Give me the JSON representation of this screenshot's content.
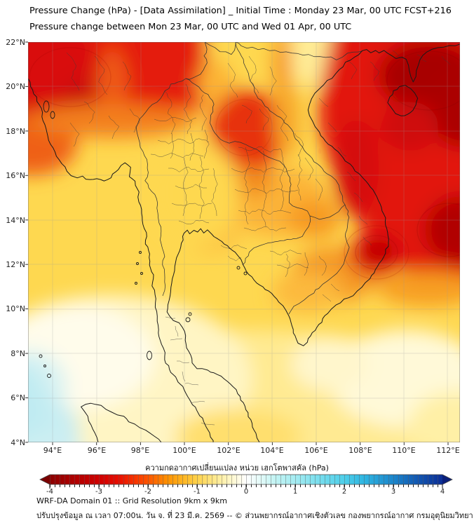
{
  "header": {
    "title_line1": "Pressure Change (hPa) - [Data Assimilation] _ Initial Time : Monday 23 Mar, 00 UTC FCST+216",
    "title_line2": "Pressure change between Mon 23 Mar, 00 UTC and Wed 01 Apr, 00 UTC"
  },
  "map": {
    "lat_ticks": [
      "22°N",
      "20°N",
      "18°N",
      "16°N",
      "14°N",
      "12°N",
      "10°N",
      "8°N",
      "6°N",
      "4°N"
    ],
    "lon_ticks": [
      "94°E",
      "96°E",
      "98°E",
      "100°E",
      "102°E",
      "104°E",
      "106°E",
      "108°E",
      "110°E",
      "112°E"
    ]
  },
  "colorbar": {
    "title": "ความกดอากาศเปลี่ยนแปลง หน่วย เฮกโตพาสคัล (hPa)",
    "ticks": [
      "-4",
      "-3",
      "-2",
      "-1",
      "0",
      "1",
      "2",
      "3",
      "4"
    ],
    "negative_color": "#8b0000",
    "zero_color": "#ffffff",
    "positive_color": "#0b2e96"
  },
  "footer": {
    "line1": "WRF-DA Domain 01 :: Grid Resolution 9km x 9km",
    "line2": "ปรับปรุงข้อมูล ณ เวลา 07:00น. วัน จ. ที่ 23 มี.ค. 2569 -- © ส่วนพยากรณ์อากาศเชิงตัวเลข กองพยากรณ์อากาศ กรมอุตุนิยมวิทยา"
  }
}
